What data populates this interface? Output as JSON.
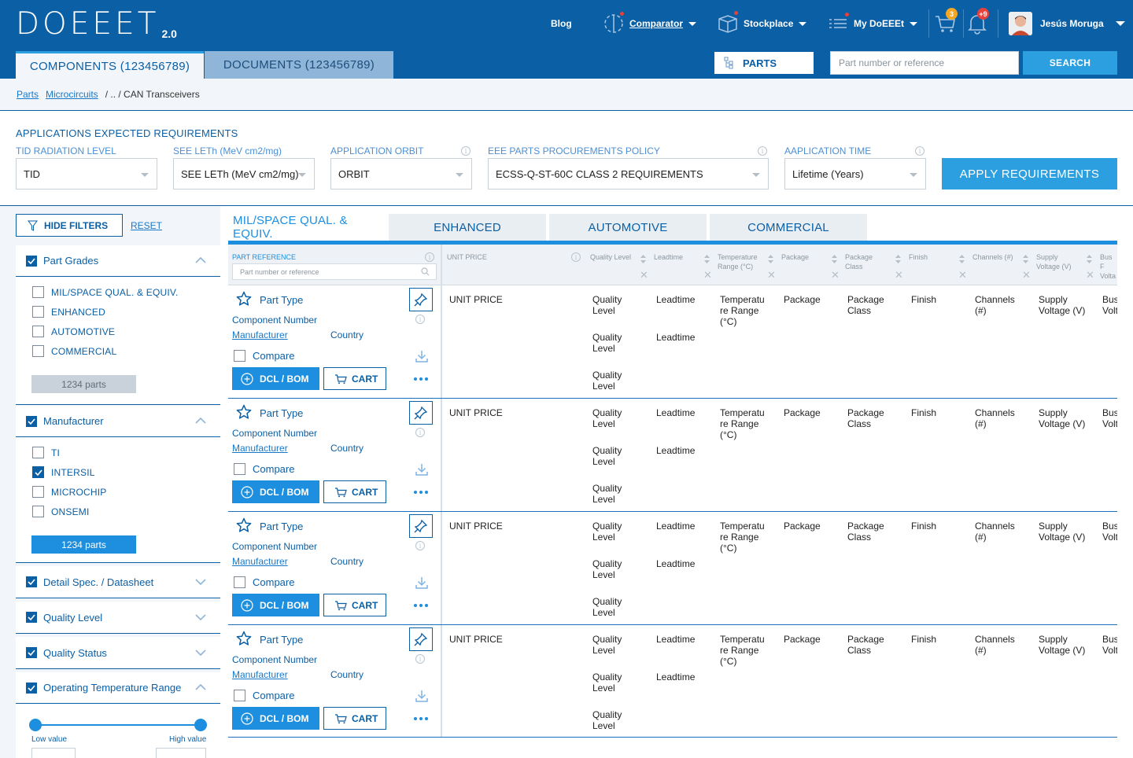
{
  "header": {
    "logo": "DOEEET",
    "version": "2.0",
    "nav": {
      "blog": "Blog",
      "comparator": "Comparator",
      "stockplace": "Stockplace",
      "my_doeeet": "My DoEEEt"
    },
    "cart_badge": "3",
    "notif_badge": "+9",
    "user_name": "Jesús Moruga",
    "tabs": [
      {
        "label": "COMPONENTS (123456789)"
      },
      {
        "label": "DOCUMENTS (123456789)"
      }
    ],
    "parts_label": "PARTS",
    "search_placeholder": "Part number or reference",
    "search_button": "SEARCH",
    "colors": {
      "brand": "#0b5fa5",
      "accent": "#1e8ede",
      "alert": "#e8413b",
      "badge_orange": "#f5a623"
    }
  },
  "breadcrumb": {
    "items": [
      "Parts",
      "Microcircuits"
    ],
    "tail": "/ .. / CAN Transceivers"
  },
  "requirements": {
    "title": "APPLICATIONS EXPECTED REQUIREMENTS",
    "fields": [
      {
        "label": "TID RADIATION LEVEL",
        "value": "TID"
      },
      {
        "label": "SEE LETh (MeV cm2/mg)",
        "value": "SEE LETh (MeV cm2/mg)"
      },
      {
        "label": "APPLICATION ORBIT",
        "value": "ORBIT"
      },
      {
        "label": "EEE PARTS PROCUREMENTS POLICY",
        "value": "ECSS-Q-ST-60C CLASS 2 REQUIREMENTS"
      },
      {
        "label": "AAPLICATION TIME",
        "value": "Lifetime (Years)"
      }
    ],
    "apply_button": "APPLY REQUIREMENTS"
  },
  "sidebar": {
    "hide_filters": "HIDE FILTERS",
    "reset": "RESET",
    "part_grades": {
      "title": "Part Grades",
      "options": [
        {
          "label": "MIL/SPACE QUAL. & EQUIV.",
          "checked": false
        },
        {
          "label": "ENHANCED",
          "checked": false
        },
        {
          "label": "AUTOMOTIVE",
          "checked": false
        },
        {
          "label": "COMMERCIAL",
          "checked": false
        }
      ],
      "parts_count": "1234 parts"
    },
    "manufacturer": {
      "title": "Manufacturer",
      "options": [
        {
          "label": "TI",
          "checked": false
        },
        {
          "label": "INTERSIL",
          "checked": true
        },
        {
          "label": "MICROCHIP",
          "checked": false
        },
        {
          "label": "ONSEMI",
          "checked": false
        }
      ],
      "parts_count": "1234 parts"
    },
    "collapsed": [
      {
        "title": "Detail Spec. / Datasheet"
      },
      {
        "title": "Quality Level"
      },
      {
        "title": "Quality Status"
      }
    ],
    "temperature": {
      "title": "Operating Temperature Range",
      "low_label": "Low value",
      "high_label": "High value"
    }
  },
  "category_tabs": [
    {
      "label": "MIL/SPACE QUAL. & EQUIV."
    },
    {
      "label": "ENHANCED"
    },
    {
      "label": "AUTOMOTIVE"
    },
    {
      "label": "COMMERCIAL"
    }
  ],
  "table": {
    "part_reference": "PART REFERENCE",
    "part_search_placeholder": "Part number or reference",
    "headers": {
      "unit_price": "UNIT PRICE",
      "quality_level": "Quality Level",
      "leadtime": "Leadtime",
      "temp_1": "Temperature",
      "temp_2": "Range (°C)",
      "package": "Package",
      "pkg_class_1": "Package",
      "pkg_class_2": "Class",
      "finish": "Finish",
      "channels": "Channels (#)",
      "supply_1": "Supply",
      "supply_2": "Voltage (V)",
      "bus_1": "Bus F",
      "bus_2": "Volta"
    },
    "row": {
      "part_type": "Part Type",
      "component_number": "Component Number",
      "manufacturer": "Manufacturer",
      "country": "Country",
      "compare": "Compare",
      "dcl_bom": "DCL / BOM",
      "cart": "CART",
      "unit_price": "UNIT PRICE",
      "quality_1": "Quality",
      "quality_2": "Level",
      "leadtime": "Leadtime",
      "temp_1": "Temperatu",
      "temp_2": "re Range",
      "temp_3": "(°C)",
      "package": "Package",
      "pkg_class_1": "Package",
      "pkg_class_2": "Class",
      "finish": "Finish",
      "channels_1": "Channels",
      "channels_2": "(#)",
      "supply_1": "Supply",
      "supply_2": "Voltage (V)",
      "bus_1": "Bus",
      "bus_2": "Volt"
    }
  }
}
